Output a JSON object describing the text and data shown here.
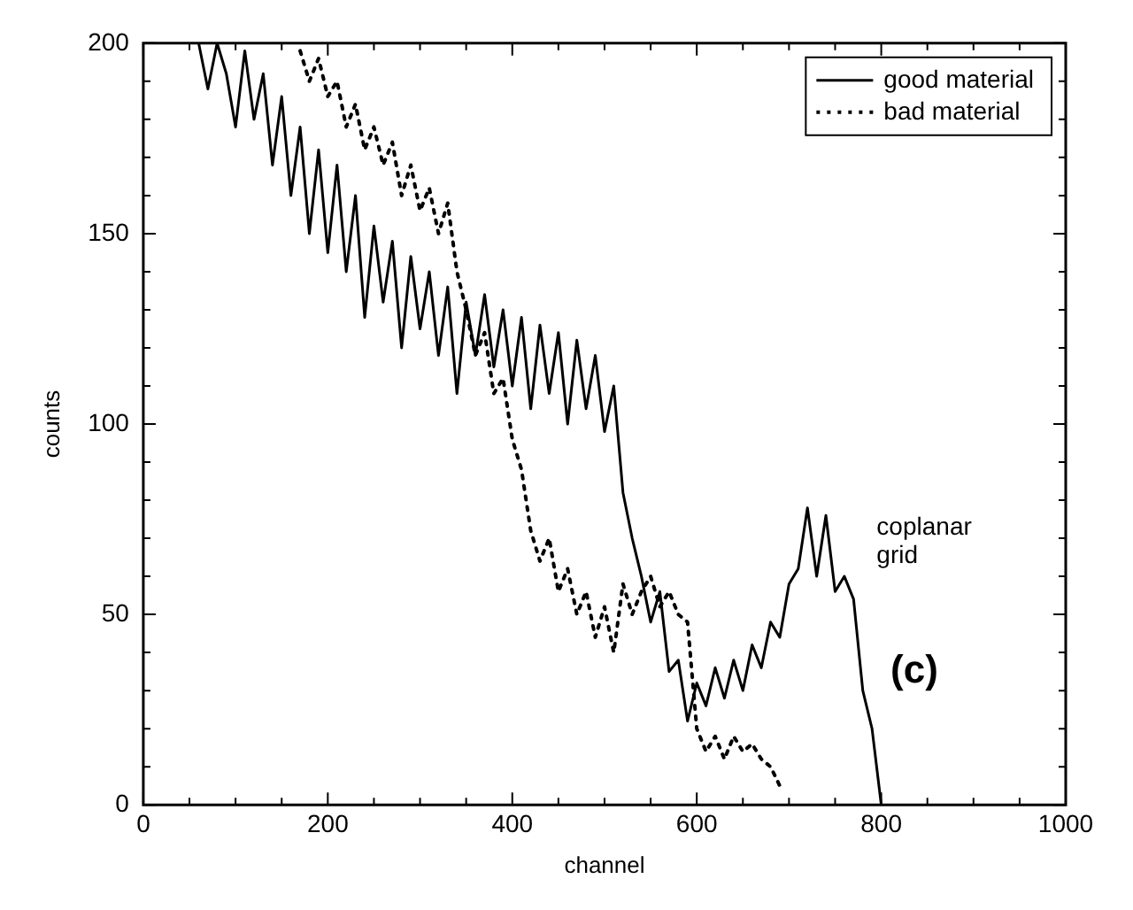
{
  "chart_data": {
    "type": "line",
    "xlabel": "channel",
    "ylabel": "counts",
    "xlim": [
      0,
      1000
    ],
    "ylim": [
      0,
      200
    ],
    "xticks": [
      0,
      {
        "value": 50,
        "label": null
      },
      {
        "value": 100,
        "label": null
      },
      {
        "value": 150,
        "label": null
      },
      200,
      {
        "value": 250,
        "label": null
      },
      {
        "value": 300,
        "label": null
      },
      {
        "value": 350,
        "label": null
      },
      400,
      {
        "value": 450,
        "label": null
      },
      {
        "value": 500,
        "label": null
      },
      {
        "value": 550,
        "label": null
      },
      600,
      {
        "value": 650,
        "label": null
      },
      {
        "value": 700,
        "label": null
      },
      {
        "value": 750,
        "label": null
      },
      800,
      {
        "value": 850,
        "label": null
      },
      {
        "value": 900,
        "label": null
      },
      {
        "value": 950,
        "label": null
      },
      1000
    ],
    "yticks": [
      0,
      {
        "value": 10,
        "label": null
      },
      {
        "value": 20,
        "label": null
      },
      {
        "value": 30,
        "label": null
      },
      {
        "value": 40,
        "label": null
      },
      50,
      {
        "value": 60,
        "label": null
      },
      {
        "value": 70,
        "label": null
      },
      {
        "value": 80,
        "label": null
      },
      {
        "value": 90,
        "label": null
      },
      100,
      {
        "value": 110,
        "label": null
      },
      {
        "value": 120,
        "label": null
      },
      {
        "value": 130,
        "label": null
      },
      {
        "value": 140,
        "label": null
      },
      150,
      {
        "value": 160,
        "label": null
      },
      {
        "value": 170,
        "label": null
      },
      {
        "value": 180,
        "label": null
      },
      {
        "value": 190,
        "label": null
      },
      200
    ],
    "grid": false,
    "legend": "top right",
    "marker": "none",
    "annotations": [
      "coplanar grid",
      "(c)"
    ],
    "series": [
      {
        "name": "good material",
        "color": "#000000",
        "line_style": "solid",
        "x": [
          60,
          70,
          80,
          90,
          100,
          110,
          120,
          130,
          140,
          150,
          160,
          170,
          180,
          190,
          200,
          210,
          220,
          230,
          240,
          250,
          260,
          270,
          280,
          290,
          300,
          310,
          320,
          330,
          340,
          350,
          360,
          370,
          380,
          390,
          400,
          410,
          420,
          430,
          440,
          450,
          460,
          470,
          480,
          490,
          500,
          510,
          520,
          530,
          540,
          550,
          560,
          570,
          580,
          590,
          600,
          610,
          620,
          630,
          640,
          650,
          660,
          670,
          680,
          690,
          700,
          710,
          720,
          730,
          740,
          750,
          760,
          770,
          780,
          790,
          800
        ],
        "values": [
          200,
          188,
          200,
          192,
          178,
          198,
          180,
          192,
          168,
          186,
          160,
          178,
          150,
          172,
          145,
          168,
          140,
          160,
          128,
          152,
          132,
          148,
          120,
          144,
          125,
          140,
          118,
          136,
          108,
          132,
          118,
          134,
          115,
          130,
          110,
          128,
          104,
          126,
          108,
          124,
          100,
          122,
          104,
          118,
          98,
          110,
          82,
          70,
          60,
          48,
          56,
          35,
          38,
          22,
          32,
          26,
          36,
          28,
          38,
          30,
          42,
          36,
          48,
          44,
          58,
          62,
          78,
          60,
          76,
          56,
          60,
          54,
          30,
          20,
          0
        ]
      },
      {
        "name": "bad material",
        "color": "#000000",
        "line_style": "dotted",
        "x": [
          170,
          180,
          190,
          200,
          210,
          220,
          230,
          240,
          250,
          260,
          270,
          280,
          290,
          300,
          310,
          320,
          330,
          340,
          350,
          360,
          370,
          380,
          390,
          400,
          410,
          420,
          430,
          440,
          450,
          460,
          470,
          480,
          490,
          500,
          510,
          520,
          530,
          540,
          550,
          560,
          570,
          580,
          590,
          600,
          610,
          620,
          630,
          640,
          650,
          660,
          670,
          680,
          690
        ],
        "values": [
          198,
          190,
          196,
          186,
          190,
          178,
          184,
          172,
          178,
          168,
          174,
          160,
          168,
          156,
          162,
          150,
          158,
          140,
          130,
          118,
          124,
          108,
          112,
          96,
          88,
          72,
          64,
          70,
          56,
          62,
          50,
          56,
          44,
          52,
          40,
          58,
          50,
          56,
          60,
          52,
          56,
          50,
          48,
          20,
          14,
          18,
          12,
          18,
          14,
          16,
          12,
          10,
          5
        ]
      }
    ]
  }
}
